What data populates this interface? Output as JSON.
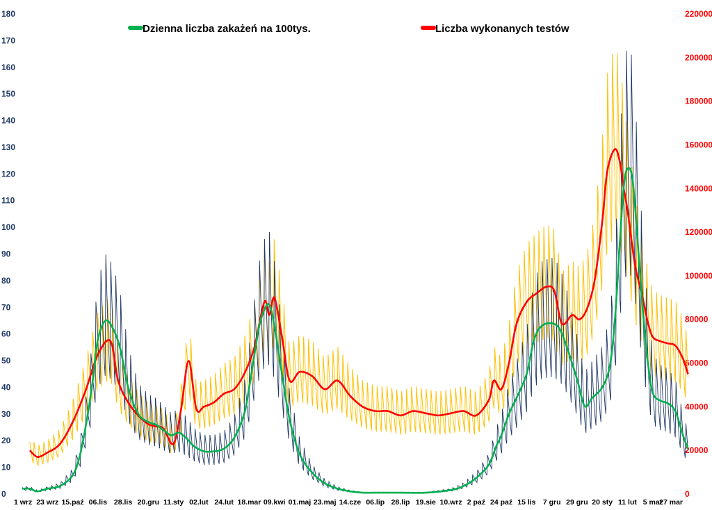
{
  "chart_data": {
    "type": "line",
    "legend": [
      {
        "name": "Dzienna liczba zakażeń na 100tys.",
        "color": "#00b050"
      },
      {
        "name": "Liczba wykonanych testów",
        "color": "#ff0000"
      }
    ],
    "legend_position": "top",
    "grid": false,
    "y_left": {
      "ylim": [
        0,
        180
      ],
      "ticks": [
        "0",
        "10",
        "20",
        "30",
        "40",
        "50",
        "60",
        "70",
        "80",
        "90",
        "100",
        "110",
        "120",
        "130",
        "140",
        "150",
        "160",
        "170",
        "180"
      ],
      "color": "#1f3864"
    },
    "y_right": {
      "ylim": [
        0,
        220000
      ],
      "ticks": [
        "0",
        "20000",
        "40000",
        "60000",
        "80000",
        "100000",
        "120000",
        "140000",
        "160000",
        "180000",
        "200000",
        "220000"
      ],
      "color": "#ff0000"
    },
    "x_tick_labels": [
      "1 wrz",
      "23 wrz",
      "15.paź",
      "06.lis",
      "28.lis",
      "20.gru",
      "11.sty",
      "02.lut",
      "24.lut",
      "18.mar",
      "09.kwi",
      "01.maj",
      "23.maj",
      "14.cze",
      "06.lip",
      "28.lip",
      "19.sie",
      "10.wrz",
      "2 paź",
      "24 paź",
      "15 lis",
      "7 gru",
      "29 gru",
      "20 sty",
      "11 lut",
      "5 mar",
      "27 mar"
    ],
    "series": [
      {
        "name": "Dzienna liczba zakażeń na 100tys.",
        "axis": "left",
        "color": "#00b050",
        "x": [
          0,
          0.3,
          0.6,
          1.0,
          1.5,
          2.0,
          2.3,
          2.6,
          2.8,
          3.0,
          3.3,
          3.6,
          3.9,
          4.2,
          4.6,
          5.0,
          5.3,
          5.6,
          5.9,
          6.2,
          6.5,
          6.8,
          7.2,
          7.6,
          8.0,
          8.4,
          8.8,
          9.0,
          9.2,
          9.4,
          9.6,
          9.8,
          10.0,
          10.3,
          10.6,
          11.0,
          11.5,
          12.0,
          12.5,
          13.0,
          13.5,
          14.0,
          15.0,
          16.0,
          17.0,
          17.5,
          18.0,
          18.5,
          18.8,
          19.0,
          19.3,
          19.6,
          20.0,
          20.3,
          20.6,
          21.0,
          21.3,
          21.6,
          22.0,
          22.3,
          22.6,
          23.0,
          23.3,
          23.5,
          23.7,
          23.85,
          24.0,
          24.2,
          24.4,
          24.6,
          24.8,
          25.0,
          25.3,
          25.6,
          25.9,
          26.2,
          26.4
        ],
        "values": [
          2,
          2,
          1,
          2,
          3,
          7,
          15,
          30,
          43,
          58,
          65,
          62,
          54,
          40,
          30,
          27,
          26,
          24,
          22,
          23,
          21,
          18,
          16,
          16,
          17,
          21,
          30,
          40,
          52,
          63,
          69,
          71,
          63,
          45,
          28,
          15,
          8,
          4,
          2,
          1,
          0.5,
          0.5,
          0.5,
          0.5,
          1.5,
          3,
          6,
          11,
          18,
          22,
          30,
          36,
          45,
          58,
          63,
          64,
          62,
          55,
          43,
          33,
          36,
          40,
          48,
          65,
          95,
          115,
          122,
          118,
          95,
          70,
          50,
          38,
          35,
          34,
          31,
          22,
          17
        ]
      },
      {
        "name": "Liczba wykonanych testów",
        "axis": "right",
        "color": "#ff0000",
        "x": [
          0.3,
          0.6,
          1.0,
          1.5,
          2.0,
          2.5,
          3.0,
          3.5,
          3.8,
          4.2,
          4.6,
          5.0,
          5.3,
          5.6,
          6.0,
          6.3,
          6.6,
          6.9,
          7.2,
          7.6,
          8.0,
          8.4,
          8.8,
          9.2,
          9.6,
          9.8,
          10.0,
          10.3,
          10.6,
          11.0,
          11.5,
          12.0,
          12.5,
          13.0,
          13.5,
          14.0,
          14.5,
          15.0,
          15.5,
          16.0,
          16.5,
          17.0,
          17.5,
          18.0,
          18.5,
          18.7,
          19.0,
          19.3,
          19.6,
          20.0,
          20.4,
          20.8,
          21.1,
          21.4,
          21.8,
          22.1,
          22.4,
          22.7,
          23.0,
          23.2,
          23.5,
          23.7,
          23.85,
          24.0,
          24.3,
          24.6,
          24.8,
          25.0,
          25.3,
          25.6,
          25.9,
          26.2,
          26.4
        ],
        "values": [
          20000,
          17000,
          19000,
          23000,
          33000,
          47000,
          64000,
          70000,
          52000,
          42000,
          36000,
          32000,
          31000,
          30000,
          23000,
          39000,
          61000,
          39000,
          40000,
          42000,
          46000,
          48000,
          55000,
          67000,
          88000,
          82000,
          90000,
          72000,
          52000,
          56000,
          54000,
          48000,
          52000,
          45000,
          40000,
          38000,
          38000,
          36000,
          38000,
          37000,
          36000,
          37000,
          38000,
          36000,
          43000,
          52000,
          48000,
          60000,
          78000,
          88000,
          92000,
          95000,
          93000,
          78000,
          82000,
          80000,
          85000,
          98000,
          125000,
          148000,
          158000,
          152000,
          140000,
          130000,
          105000,
          90000,
          79000,
          72000,
          70000,
          69000,
          68000,
          62000,
          55000
        ]
      }
    ],
    "noise_series": [
      {
        "name": "",
        "axis": "left",
        "color": "#203864"
      },
      {
        "name": "",
        "axis": "right",
        "color": "#ffc000"
      }
    ]
  }
}
